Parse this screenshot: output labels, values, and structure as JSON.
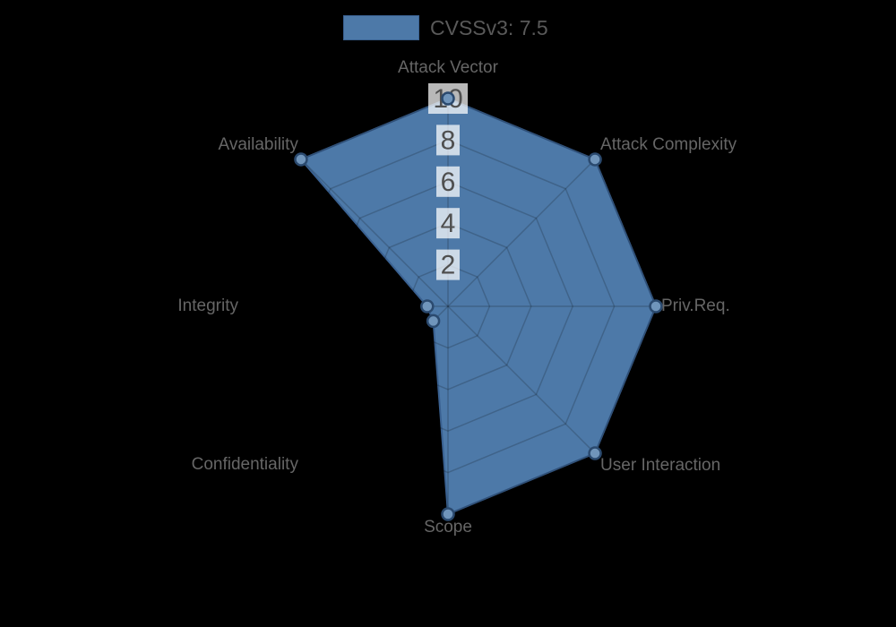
{
  "page": {
    "background": "#000000"
  },
  "legend": {
    "label": "CVSSv3: 7.5",
    "swatch_color": "#4d79a8",
    "swatch_border_color": "#3a6191",
    "text_color": "#595959"
  },
  "chart_data": {
    "type": "radar",
    "title": "CVSSv3: 7.5",
    "axes": [
      "Attack Vector",
      "Attack Complexity",
      "Priv.Req.",
      "User Interaction",
      "Scope",
      "Confidentiality",
      "Integrity",
      "Availability"
    ],
    "series": [
      {
        "name": "CVSSv3: 7.5",
        "values": [
          10,
          10,
          10,
          10,
          10,
          1,
          1,
          10
        ]
      }
    ],
    "scale": {
      "min": 0,
      "max": 10,
      "ticks": [
        2,
        4,
        6,
        8,
        10
      ]
    },
    "grid": true,
    "legend_position": "top",
    "colors": {
      "fill": "#4d79a8",
      "stroke": "#3a6191",
      "point_fill": "#7095bb",
      "point_stroke": "#2b4a6f",
      "grid_line": "rgba(0,0,0,0.18)",
      "tick_backdrop": "rgba(255,255,255,0.72)",
      "tick_text": "#4f4f4f",
      "axis_label_text": "#666666",
      "background": "#000000"
    }
  }
}
